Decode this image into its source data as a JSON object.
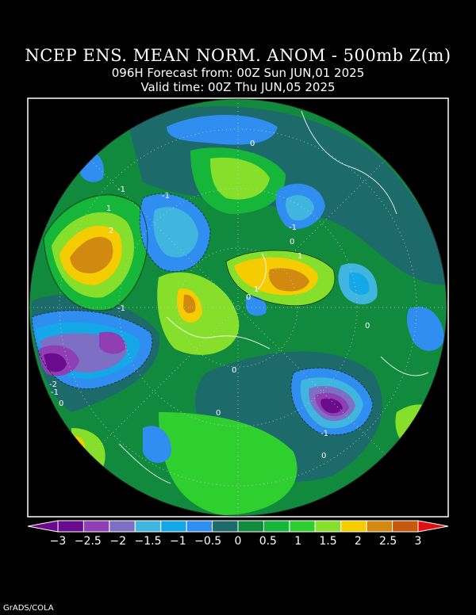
{
  "header": {
    "title": "NCEP ENS. MEAN NORM. ANOM - 500mb Z(m)",
    "forecast": "096H Forecast from: 00Z Sun JUN,01 2025",
    "valid": "Valid time: 00Z Thu JUN,05 2025"
  },
  "credit": "GrADS/COLA",
  "colorbar": {
    "colors": [
      "#6a0a8c",
      "#8f3fb3",
      "#7c6fc4",
      "#3fb5e0",
      "#15a8e8",
      "#2f8ef0",
      "#1c6a6a",
      "#118a3e",
      "#16b63a",
      "#2fcf2f",
      "#86e02b",
      "#f4cc00",
      "#d18a0f",
      "#c85a10"
    ],
    "labels": [
      "-3",
      "-2.5",
      "-2",
      "-1.5",
      "-1",
      "-0.5",
      "0",
      "0.5",
      "1",
      "1.5",
      "2",
      "2.5",
      "3"
    ],
    "arrow_low": "#6a0a8c",
    "arrow_high": "#e01010"
  },
  "map": {
    "projection": "polar stereographic (north pole)",
    "contour_labels": [
      "0",
      "-1",
      "1",
      "2",
      "-1",
      "0",
      "1",
      "-1",
      "1",
      "0",
      "0",
      "-1",
      "0",
      "-2",
      "-1",
      "0",
      "0",
      "-1",
      "0"
    ],
    "background_color": "#118a3e"
  }
}
